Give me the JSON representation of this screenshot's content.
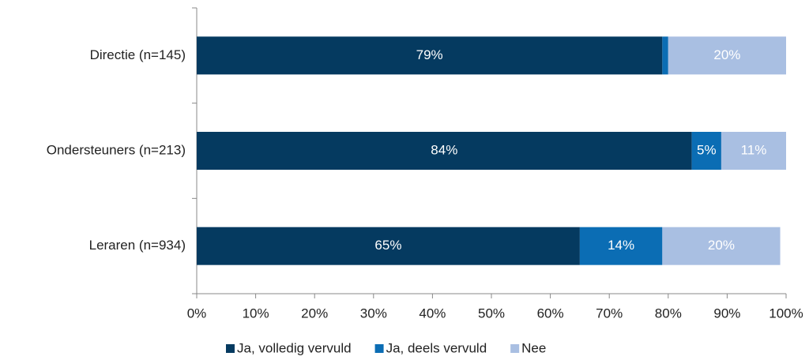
{
  "chart_data": {
    "type": "stacked-bar-horizontal",
    "categories": [
      "Directie (n=145)",
      "Ondersteuners (n=213)",
      "Leraren (n=934)"
    ],
    "series": [
      {
        "name": "Ja, volledig vervuld",
        "color": "#053a60",
        "values": [
          79,
          84,
          65
        ],
        "value_labels": [
          "79%",
          "84%",
          "65%"
        ]
      },
      {
        "name": "Ja, deels vervuld",
        "color": "#0b6db4",
        "values": [
          1,
          5,
          14
        ],
        "value_labels": [
          null,
          "5%",
          "14%"
        ]
      },
      {
        "name": "Nee",
        "color": "#a9bfe2",
        "values": [
          20,
          11,
          20
        ],
        "value_labels": [
          "20%",
          "11%",
          "20%"
        ]
      }
    ],
    "xlim": [
      0,
      100
    ],
    "xticks": [
      {
        "value": 0,
        "label": "0%"
      },
      {
        "value": 10,
        "label": "10%"
      },
      {
        "value": 20,
        "label": "20%"
      },
      {
        "value": 30,
        "label": "30%"
      },
      {
        "value": 40,
        "label": "40%"
      },
      {
        "value": 50,
        "label": "50%"
      },
      {
        "value": 60,
        "label": "60%"
      },
      {
        "value": 70,
        "label": "70%"
      },
      {
        "value": 80,
        "label": "80%"
      },
      {
        "value": 90,
        "label": "90%"
      },
      {
        "value": 100,
        "label": "100%"
      }
    ],
    "legend": "bottom"
  }
}
